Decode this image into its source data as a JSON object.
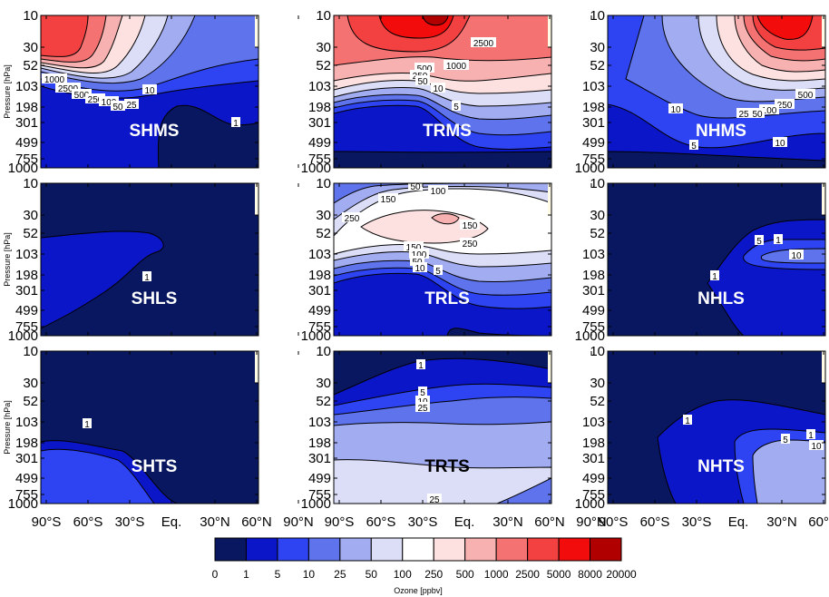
{
  "chart_data": {
    "type": "heatmap",
    "ylabel": "Pressure [hPa]",
    "yticks": [
      "10",
      "30",
      "52",
      "103",
      "198",
      "301",
      "499",
      "755",
      "1000"
    ],
    "xticks": [
      "90°S",
      "60°S",
      "30°S",
      "Eq.",
      "30°N",
      "60°N",
      "90°N"
    ],
    "colorbar": {
      "label": "Ozone [ppbv]",
      "levels": [
        "0",
        "1",
        "5",
        "10",
        "25",
        "50",
        "100",
        "250",
        "500",
        "1000",
        "2500",
        "5000",
        "8000",
        "20000"
      ],
      "colors": [
        "#081760",
        "#0a16c8",
        "#2e44f2",
        "#5f74ec",
        "#a2acf0",
        "#dcdef8",
        "#ffffff",
        "#fde1e1",
        "#f7b1b1",
        "#f57272",
        "#f34040",
        "#f20c0c",
        "#b00000"
      ]
    },
    "panels": [
      {
        "id": "SHMS",
        "label": "SHMS",
        "contour_labels": [
          "1000",
          "2500",
          "500",
          "250",
          "100",
          "50",
          "25",
          "10",
          "1"
        ]
      },
      {
        "id": "TRMS",
        "label": "TRMS",
        "contour_labels": [
          "2500",
          "1000",
          "500",
          "250",
          "50",
          "10",
          "5"
        ]
      },
      {
        "id": "NHMS",
        "label": "NHMS",
        "contour_labels": [
          "500",
          "250",
          "100",
          "50",
          "25",
          "10",
          "10",
          "5"
        ]
      },
      {
        "id": "SHLS",
        "label": "SHLS",
        "contour_labels": [
          "1"
        ]
      },
      {
        "id": "TRLS",
        "label": "TRLS",
        "contour_labels": [
          "50",
          "100",
          "150",
          "250",
          "150",
          "250",
          "150",
          "100",
          "50",
          "10",
          "5"
        ]
      },
      {
        "id": "NHLS",
        "label": "NHLS",
        "contour_labels": [
          "5",
          "1",
          "10",
          "1"
        ]
      },
      {
        "id": "SHTS",
        "label": "SHTS",
        "contour_labels": [
          "1"
        ]
      },
      {
        "id": "TRTS",
        "label": "TRTS",
        "contour_labels": [
          "1",
          "5",
          "10",
          "25",
          "25"
        ]
      },
      {
        "id": "NHTS",
        "label": "NHTS",
        "contour_labels": [
          "1",
          "5",
          "1",
          "10"
        ]
      }
    ]
  }
}
